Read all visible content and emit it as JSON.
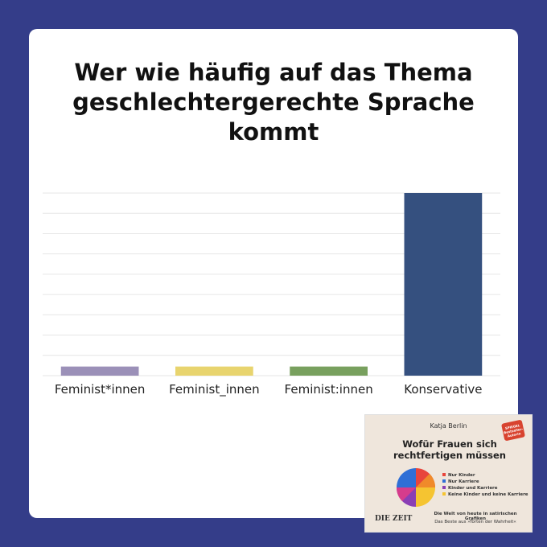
{
  "chart_data": {
    "type": "bar",
    "title": "Wer wie häufig auf das Thema geschlechtergerechte Sprache kommt",
    "categories": [
      "Feminist*innen",
      "Feminist_innen",
      "Feminist:innen",
      "Konservative"
    ],
    "values": [
      0.45,
      0.45,
      0.45,
      9
    ],
    "colors": [
      "#9b90b8",
      "#e8d46e",
      "#78a05e",
      "#35507f"
    ],
    "ylim": [
      0,
      9
    ],
    "yticks": [
      0,
      1,
      2,
      3,
      4,
      5,
      6,
      7,
      8,
      9
    ],
    "grid": true
  },
  "book_cover": {
    "author": "Katja Berlin",
    "badge": "SPIEGEL Bestseller-Autorin",
    "title": "Wofür Frauen sich rechtfertigen müssen",
    "legend": [
      "Nur Kinder",
      "Nur Karriere",
      "Kinder und Karriere",
      "Keine Kinder und keine Karriere"
    ],
    "publisher": "DIE ZEIT",
    "subtitle": "Die Welt von heute in satirischen Grafiken",
    "tagline": "Das Beste aus »Torten der Wahrheit«"
  }
}
